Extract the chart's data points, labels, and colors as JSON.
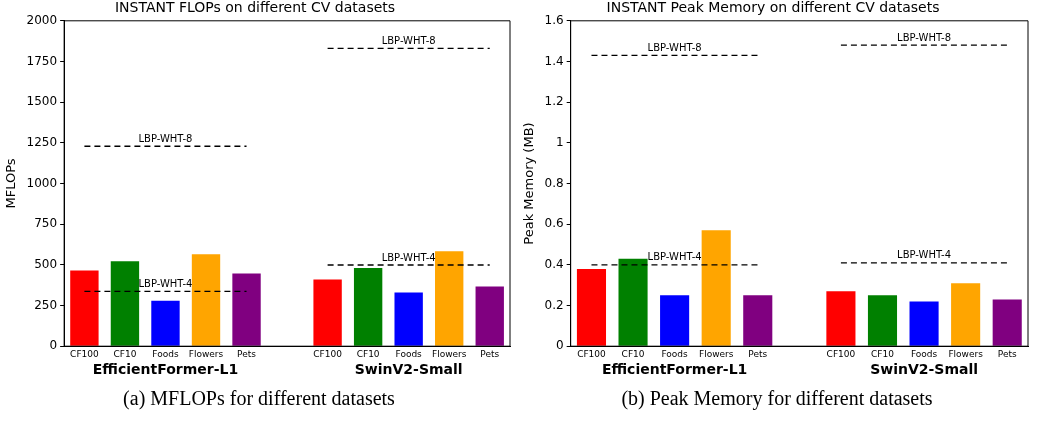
{
  "chart_data": [
    {
      "type": "bar",
      "title": "INSTANT FLOPs on different CV datasets",
      "ylabel": "MFLOPs",
      "categories": [
        "CF100",
        "CF10",
        "Foods",
        "Flowers",
        "Pets",
        null,
        "CF100",
        "CF10",
        "Foods",
        "Flowers",
        "Pets"
      ],
      "series": [
        {
          "colors": [
            "#ff0000",
            "#008000",
            "#0000ff",
            "#ffa500",
            "#800080",
            "#ffffff",
            "#ff0000",
            "#008000",
            "#0000ff",
            "#ffa500",
            "#800080"
          ],
          "values": [
            466,
            522,
            280,
            565,
            447,
            null,
            410,
            480,
            330,
            583,
            367
          ]
        },
        {
          "name": "LBP-WHT-4",
          "type": "line",
          "color": "#000000",
          "values": [
            337,
            337,
            337,
            337,
            337,
            null,
            null,
            null,
            null,
            null,
            null
          ]
        },
        {
          "name": "LBP-WHT-8",
          "type": "line",
          "color": "#000000",
          "values": [
            1229,
            1229,
            1229,
            1229,
            1229,
            null,
            null,
            null,
            null,
            null,
            null
          ]
        },
        {
          "name": "LBP-WHT-4",
          "type": "line",
          "color": "#000000",
          "values": [
            null,
            null,
            null,
            null,
            null,
            null,
            499,
            499,
            499,
            499,
            499
          ]
        },
        {
          "name": "LBP-WHT-8",
          "type": "line",
          "color": "#000000",
          "values": [
            null,
            null,
            null,
            null,
            null,
            null,
            1831,
            1831,
            1831,
            1831,
            1831
          ]
        }
      ],
      "ylim": [
        0,
        2000
      ],
      "yticks": [
        0,
        250,
        500,
        750,
        1000,
        1250,
        1500,
        1750,
        2000
      ],
      "line_style": "dashed",
      "marker": "none",
      "legend": false,
      "grid": false,
      "annotations": [
        "EfficientFormer-L1",
        "SwinV2-Small",
        "(a) MFLOPs for different datasets"
      ]
    },
    {
      "type": "bar",
      "title": "INSTANT Peak Memory on different CV datasets",
      "ylabel": "Peak Memory (MB)",
      "categories": [
        "CF100",
        "CF10",
        "Foods",
        "Flowers",
        "Pets",
        null,
        "CF100",
        "CF10",
        "Foods",
        "Flowers",
        "Pets"
      ],
      "series": [
        {
          "colors": [
            "#ff0000",
            "#008000",
            "#0000ff",
            "#ffa500",
            "#800080",
            "#ffffff",
            "#ff0000",
            "#008000",
            "#0000ff",
            "#ffa500",
            "#800080"
          ],
          "values": [
            0.38,
            0.43,
            0.25,
            0.57,
            0.25,
            null,
            0.27,
            0.25,
            0.22,
            0.31,
            0.23
          ]
        },
        {
          "name": "LBP-WHT-4",
          "type": "line",
          "color": "#000000",
          "values": [
            0.4,
            0.4,
            0.4,
            0.4,
            0.4,
            null,
            null,
            null,
            null,
            null,
            null
          ]
        },
        {
          "name": "LBP-WHT-8",
          "type": "line",
          "color": "#000000",
          "values": [
            1.43,
            1.43,
            1.43,
            1.43,
            1.43,
            null,
            null,
            null,
            null,
            null,
            null
          ]
        },
        {
          "name": "LBP-WHT-4",
          "type": "line",
          "color": "#000000",
          "values": [
            null,
            null,
            null,
            null,
            null,
            null,
            0.41,
            0.41,
            0.41,
            0.41,
            0.41
          ]
        },
        {
          "name": "LBP-WHT-8",
          "type": "line",
          "color": "#000000",
          "values": [
            null,
            null,
            null,
            null,
            null,
            null,
            1.48,
            1.48,
            1.48,
            1.48,
            1.48
          ]
        }
      ],
      "ylim": [
        0,
        1.6
      ],
      "yticks": [
        0,
        0.2,
        0.4,
        0.6,
        0.8,
        1,
        1.2,
        1.4,
        1.6
      ],
      "line_style": "dashed",
      "marker": "none",
      "legend": false,
      "grid": false,
      "annotations": [
        "EfficientFormer-L1",
        "SwinV2-Small",
        "(b) Peak Memory for different datasets"
      ]
    }
  ]
}
